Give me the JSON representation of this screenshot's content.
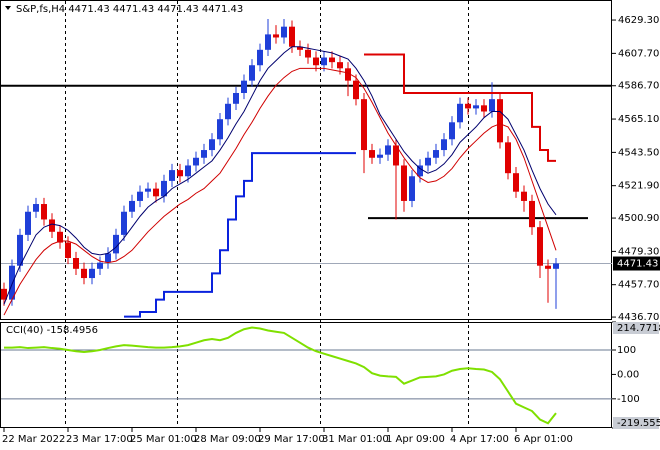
{
  "chart_data": [
    {
      "type": "candlestick",
      "title": "S&P,fs,H4  4471.43 4471.43 4471.43 4471.43",
      "categories": [
        "22 Mar 2022",
        null,
        null,
        null,
        null,
        null,
        null,
        null,
        "23 Mar 17:00",
        null,
        null,
        null,
        null,
        null,
        null,
        null,
        "25 Mar 01:00",
        null,
        null,
        null,
        null,
        null,
        null,
        null,
        "28 Mar 09:00",
        null,
        null,
        null,
        null,
        null,
        null,
        null,
        "29 Mar 17:00",
        null,
        null,
        null,
        null,
        null,
        null,
        null,
        "31 Mar 01:00",
        null,
        null,
        null,
        null,
        null,
        null,
        null,
        "1 Apr 09:00",
        null,
        null,
        null,
        null,
        null,
        null,
        null,
        "4 Apr 17:00",
        null,
        null,
        null,
        null,
        null,
        null,
        null,
        "6 Apr 01:00",
        null,
        null,
        null,
        null,
        null
      ],
      "open": [
        4455,
        4448,
        4470,
        4490,
        4505,
        4510,
        4500,
        4492,
        4485,
        4475,
        4468,
        4462,
        4468,
        4472,
        4478,
        4490,
        4505,
        4512,
        4518,
        4520,
        4515,
        4525,
        4532,
        4528,
        4535,
        4540,
        4545,
        4552,
        4565,
        4575,
        4582,
        4590,
        4600,
        4610,
        4620,
        4618,
        4625,
        4612,
        4610,
        4605,
        4600,
        4605,
        4602,
        4598,
        4590,
        4578,
        4545,
        4540,
        4542,
        4548,
        4535,
        4512,
        4528,
        4535,
        4540,
        4545,
        4552,
        4563,
        4575,
        4572,
        4574,
        4570,
        4578,
        4550,
        4530,
        4518,
        4512,
        4495,
        4470,
        4468
      ],
      "high": [
        4459,
        4474,
        4494,
        4509,
        4514,
        4514,
        4504,
        4496,
        4489,
        4479,
        4472,
        4472,
        4476,
        4482,
        4494,
        4509,
        4516,
        4522,
        4524,
        4524,
        4529,
        4536,
        4536,
        4539,
        4544,
        4549,
        4556,
        4569,
        4579,
        4586,
        4594,
        4604,
        4614,
        4630,
        4626,
        4630,
        4629,
        4616,
        4614,
        4609,
        4609,
        4609,
        4606,
        4602,
        4594,
        4582,
        4549,
        4546,
        4552,
        4552,
        4539,
        4532,
        4539,
        4544,
        4549,
        4556,
        4567,
        4579,
        4579,
        4578,
        4578,
        4589,
        4582,
        4554,
        4534,
        4522,
        4516,
        4499,
        4474,
        4475
      ],
      "low": [
        4444,
        4444,
        4466,
        4486,
        4501,
        4496,
        4488,
        4481,
        4471,
        4464,
        4458,
        4458,
        4464,
        4468,
        4474,
        4486,
        4501,
        4508,
        4514,
        4511,
        4511,
        4521,
        4524,
        4524,
        4531,
        4536,
        4541,
        4548,
        4561,
        4571,
        4578,
        4586,
        4596,
        4606,
        4614,
        4614,
        4608,
        4606,
        4601,
        4596,
        4596,
        4598,
        4594,
        4580,
        4574,
        4530,
        4536,
        4536,
        4538,
        4500,
        4505,
        4508,
        4524,
        4531,
        4536,
        4541,
        4548,
        4559,
        4568,
        4568,
        4566,
        4566,
        4546,
        4526,
        4514,
        4505,
        4490,
        4462,
        4446,
        4442
      ],
      "close": [
        4448,
        4470,
        4490,
        4505,
        4510,
        4500,
        4492,
        4485,
        4475,
        4468,
        4462,
        4468,
        4472,
        4478,
        4490,
        4505,
        4512,
        4518,
        4520,
        4515,
        4525,
        4532,
        4528,
        4535,
        4540,
        4545,
        4552,
        4565,
        4575,
        4582,
        4590,
        4600,
        4610,
        4620,
        4618,
        4625,
        4612,
        4610,
        4605,
        4600,
        4605,
        4602,
        4598,
        4590,
        4578,
        4545,
        4540,
        4542,
        4548,
        4535,
        4512,
        4528,
        4535,
        4540,
        4545,
        4552,
        4563,
        4575,
        4572,
        4574,
        4570,
        4578,
        4550,
        4530,
        4518,
        4512,
        4495,
        4470,
        4468,
        4471.43
      ],
      "up_color": "#1f3fd8",
      "down_color": "#e00000",
      "lines": [
        {
          "color": "#00006e",
          "width": 1,
          "values": [
            4445,
            4458,
            4470,
            4480,
            4490,
            4495,
            4497,
            4496,
            4493,
            4488,
            4482,
            4478,
            4477,
            4478,
            4482,
            4488,
            4495,
            4502,
            4508,
            4512,
            4515,
            4520,
            4523,
            4526,
            4530,
            4534,
            4538,
            4545,
            4553,
            4562,
            4570,
            4580,
            4590,
            4598,
            4603,
            4608,
            4612,
            4612,
            4611,
            4610,
            4609,
            4608,
            4606,
            4604,
            4598,
            4590,
            4580,
            4568,
            4560,
            4552,
            4544,
            4538,
            4533,
            4530,
            4532,
            4536,
            4542,
            4550,
            4555,
            4560,
            4566,
            4570,
            4570,
            4565,
            4555,
            4545,
            4532,
            4520,
            4510,
            4503
          ]
        },
        {
          "color": "#d00000",
          "width": 1,
          "values": [
            4438,
            4448,
            4458,
            4466,
            4474,
            4480,
            4484,
            4486,
            4486,
            4484,
            4480,
            4476,
            4473,
            4472,
            4473,
            4476,
            4480,
            4486,
            4492,
            4497,
            4502,
            4506,
            4510,
            4513,
            4517,
            4520,
            4525,
            4530,
            4538,
            4546,
            4555,
            4563,
            4572,
            4580,
            4587,
            4592,
            4596,
            4598,
            4598,
            4598,
            4598,
            4597,
            4596,
            4595,
            4592,
            4585,
            4576,
            4566,
            4556,
            4548,
            4540,
            4533,
            4527,
            4524,
            4525,
            4528,
            4533,
            4540,
            4546,
            4551,
            4556,
            4560,
            4562,
            4560,
            4552,
            4540,
            4525,
            4510,
            4495,
            4480
          ]
        },
        {
          "color": "#0a22dd",
          "width": 2,
          "step": true,
          "values": [
            null,
            null,
            null,
            null,
            null,
            null,
            null,
            null,
            null,
            null,
            null,
            null,
            null,
            null,
            null,
            4437,
            4437,
            4440,
            4440,
            4448,
            4453,
            4453,
            4453,
            4453,
            4453,
            4453,
            4465,
            4480,
            4500,
            4515,
            4525,
            4543,
            4543,
            4543,
            4543,
            4543,
            4543,
            4543,
            4543,
            4543,
            4543,
            4543,
            4543,
            4543,
            4543,
            null,
            null,
            null,
            null,
            null,
            null,
            null,
            null,
            null,
            null,
            null,
            null,
            null,
            null,
            null,
            null,
            null,
            null,
            null,
            null,
            null,
            null,
            null,
            null,
            null
          ]
        },
        {
          "color": "#dd0000",
          "width": 2,
          "step": true,
          "values": [
            null,
            null,
            null,
            null,
            null,
            null,
            null,
            null,
            null,
            null,
            null,
            null,
            null,
            null,
            null,
            null,
            null,
            null,
            null,
            null,
            null,
            null,
            null,
            null,
            null,
            null,
            null,
            null,
            null,
            null,
            null,
            null,
            null,
            null,
            null,
            null,
            null,
            null,
            null,
            null,
            null,
            null,
            null,
            null,
            null,
            4607,
            4607,
            4607,
            4607,
            4607,
            4582,
            4582,
            4582,
            4582,
            4582,
            4582,
            4582,
            4582,
            4582,
            4582,
            4582,
            4582,
            4582,
            4582,
            4582,
            4582,
            4560,
            4545,
            4538,
            4538
          ]
        }
      ],
      "hlines": [
        {
          "value": 4586.7,
          "color": "#000000"
        },
        {
          "value": 4500.9,
          "color": "#000000"
        }
      ],
      "ylim": [
        4434.8,
        4642.3
      ],
      "yticks": [
        {
          "value": 4629.3,
          "label": "4629.30"
        },
        {
          "value": 4607.7,
          "label": "4607.70"
        },
        {
          "value": 4586.7,
          "label": "4586.70"
        },
        {
          "value": 4565.1,
          "label": "4565.10"
        },
        {
          "value": 4543.5,
          "label": "4543.50"
        },
        {
          "value": 4521.9,
          "label": "4521.90"
        },
        {
          "value": 4500.9,
          "label": "4500.90"
        },
        {
          "value": 4479.3,
          "label": "4479.30"
        },
        {
          "value": 4457.7,
          "label": "4457.70"
        },
        {
          "value": 4436.7,
          "label": "4436.70"
        }
      ]
    },
    {
      "type": "line",
      "title": "CCI(40) -158.4956",
      "color": "#7fe000",
      "values": [
        110,
        110,
        112,
        108,
        110,
        112,
        108,
        105,
        100,
        95,
        92,
        95,
        100,
        108,
        115,
        120,
        118,
        115,
        112,
        110,
        110,
        112,
        115,
        120,
        130,
        140,
        145,
        140,
        150,
        170,
        185,
        192,
        188,
        180,
        175,
        170,
        150,
        130,
        110,
        95,
        85,
        75,
        65,
        55,
        45,
        30,
        5,
        -5,
        -8,
        -10,
        -38,
        -25,
        -12,
        -10,
        -8,
        0,
        15,
        22,
        25,
        22,
        20,
        10,
        -20,
        -70,
        -120,
        -135,
        -150,
        -185,
        -200,
        -158.4956
      ],
      "levels": [
        100,
        -100
      ],
      "ylim": [
        -219.555,
        214.7718
      ],
      "yticks": [
        {
          "value": 214.7718,
          "label": "214.7718"
        },
        100,
        {
          "value": 0,
          "label": "0.00"
        },
        -100,
        {
          "value": -219.555,
          "label": "-219.555"
        }
      ]
    }
  ]
}
